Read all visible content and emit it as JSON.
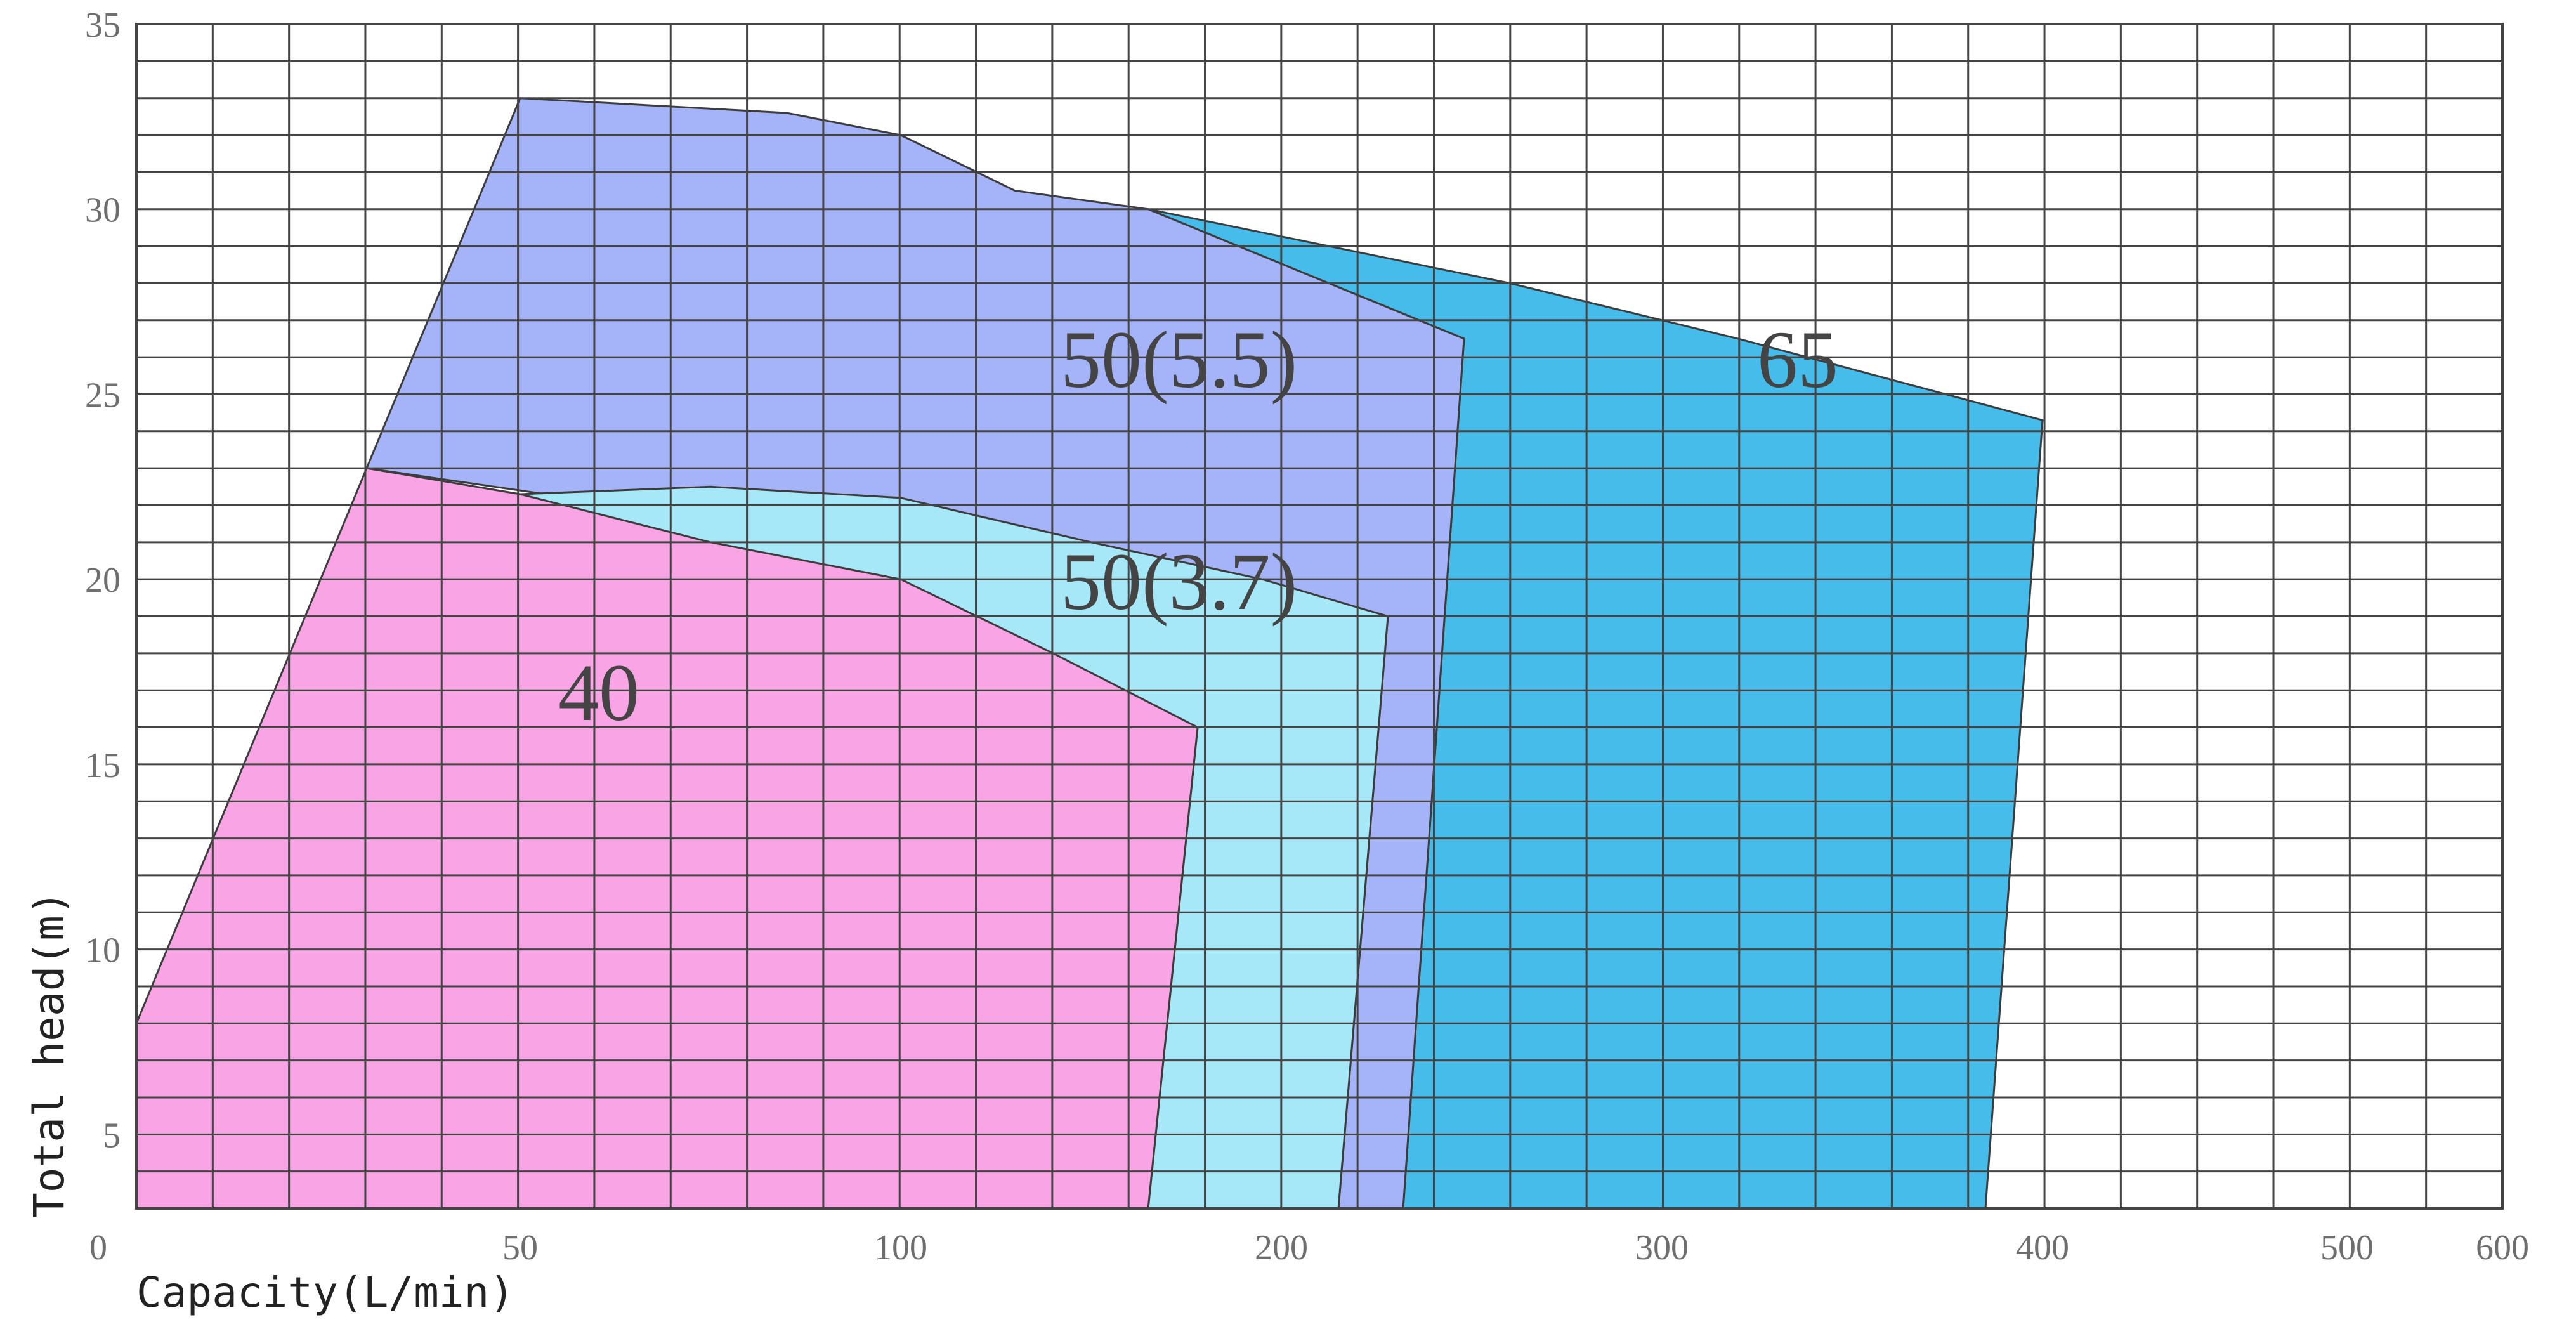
{
  "chart_data": {
    "type": "area",
    "title": "",
    "xlabel": "Capacity(L/min)",
    "ylabel": "Total head(m)",
    "x_ticks": [
      0,
      50,
      100,
      200,
      300,
      400,
      500,
      600
    ],
    "y_ticks": [
      5,
      10,
      15,
      20,
      25,
      30,
      35
    ],
    "ylim": [
      3,
      35
    ],
    "x_scale": "piecewise: 0–100 compressed, 100–400 linear, 400–600 compressed",
    "grid": true,
    "legend": "none",
    "series": [
      {
        "name": "65",
        "color": "#46bcea",
        "points": [
          [
            165,
            30
          ],
          [
            260,
            28
          ],
          [
            320,
            26.5
          ],
          [
            400,
            24.3
          ],
          [
            385,
            3
          ],
          [
            232,
            3
          ],
          [
            248,
            26.5
          ]
        ]
      },
      {
        "name": "50(5.5)",
        "color": "#a5b4f8",
        "points": [
          [
            30,
            23
          ],
          [
            50,
            33
          ],
          [
            85,
            32.6
          ],
          [
            100,
            32
          ],
          [
            130,
            30.5
          ],
          [
            165,
            30
          ],
          [
            248,
            26.5
          ],
          [
            232,
            3
          ],
          [
            215,
            3
          ],
          [
            228,
            19
          ]
        ]
      },
      {
        "name": "50(3.7)",
        "color": "#a6e8f8",
        "points": [
          [
            50,
            22.3
          ],
          [
            75,
            22.5
          ],
          [
            100,
            22.2
          ],
          [
            150,
            21
          ],
          [
            195,
            20
          ],
          [
            228,
            19
          ],
          [
            215,
            3
          ],
          [
            165,
            3
          ],
          [
            178,
            16
          ]
        ]
      },
      {
        "name": "40",
        "color": "#f9a5e5",
        "points": [
          [
            0,
            8
          ],
          [
            30,
            23
          ],
          [
            50,
            22.3
          ],
          [
            75,
            21
          ],
          [
            100,
            20
          ],
          [
            140,
            18
          ],
          [
            178,
            16
          ],
          [
            165,
            3
          ],
          [
            0,
            3
          ]
        ]
      }
    ]
  }
}
